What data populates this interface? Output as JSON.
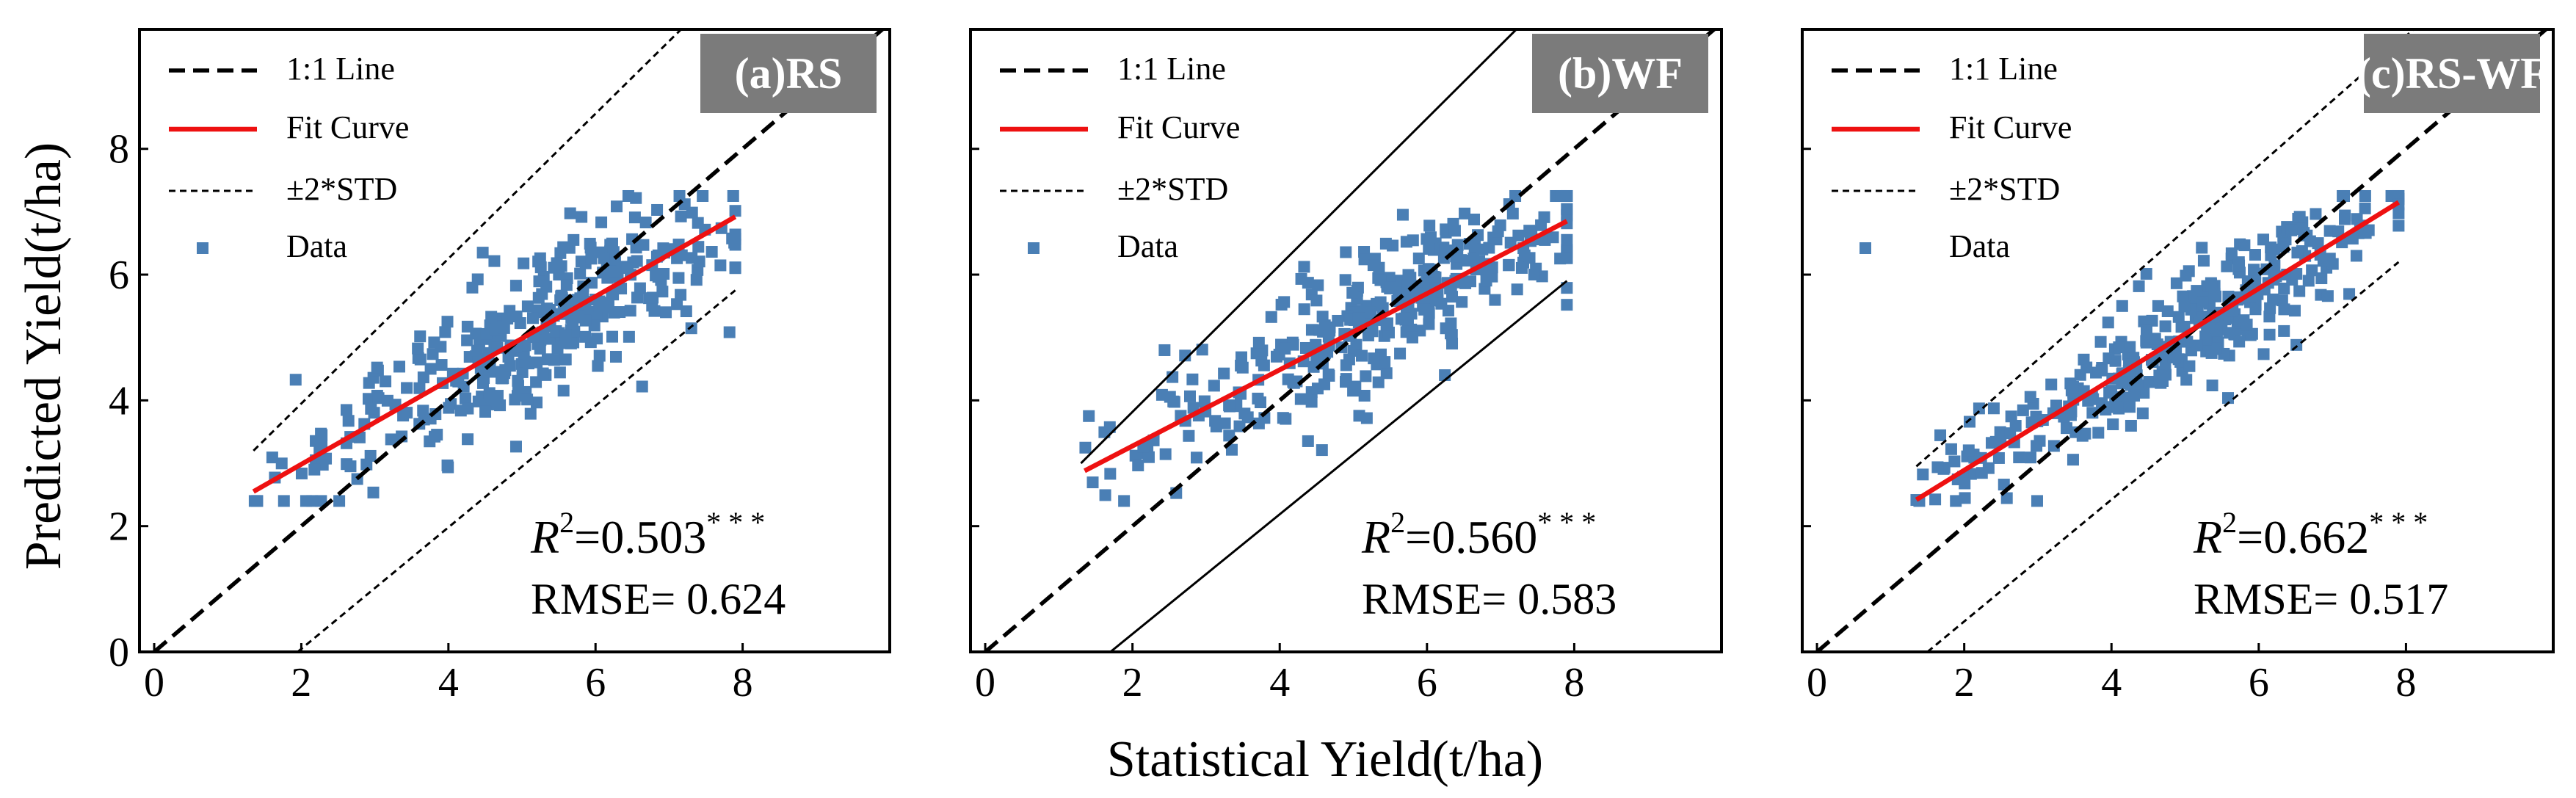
{
  "figure": {
    "ylabel": "Predicted Yield(t/ha)",
    "xlabel": "Statistical Yield(t/ha)"
  },
  "style": {
    "point_color": "#4a7fb5",
    "fit_color": "#ee1111",
    "label_bg": "#7b7b7b",
    "label_text": "#ffffff",
    "line_color": "#000000"
  },
  "chart_data": [
    {
      "type": "scatter",
      "id": "a",
      "title": "(a)RS",
      "xlabel": "Statistical Yield(t/ha)",
      "ylabel": "Predicted Yield(t/ha)",
      "xlim": [
        -0.2,
        10
      ],
      "ylim": [
        0,
        9.9
      ],
      "xticks": [
        0,
        2,
        4,
        6,
        8
      ],
      "yticks": [
        0,
        2,
        4,
        6,
        8
      ],
      "legend": [
        "1:1 Line",
        "Fit Curve",
        "±2*STD",
        "Data"
      ],
      "legend_position": "top-left",
      "one_to_one": [
        [
          0,
          0
        ],
        [
          10,
          10
        ]
      ],
      "fit_line": [
        [
          1.35,
          2.55
        ],
        [
          7.9,
          6.92
        ]
      ],
      "std_upper": [
        [
          1.35,
          3.2
        ],
        [
          7.25,
          10.0
        ]
      ],
      "std_lower": [
        [
          1.95,
          0.0
        ],
        [
          7.9,
          5.75
        ]
      ],
      "std_style": "dashed",
      "r2_label": "R",
      "r2_sup": "2",
      "r2_value": "0.503",
      "r2_stars": "* * *",
      "rmse_label": "RMSE=",
      "rmse_value": "0.624",
      "data": {
        "seed": 17,
        "n": 350,
        "slope": 0.62,
        "intercept": 1.82,
        "spread": 0.62,
        "xmin": 1.35,
        "xmax": 7.9,
        "center": 5.3
      }
    },
    {
      "type": "scatter",
      "id": "b",
      "title": "(b)WF",
      "xlabel": "Statistical Yield(t/ha)",
      "ylabel": "Predicted Yield(t/ha)",
      "xlim": [
        -0.2,
        10
      ],
      "ylim": [
        0,
        9.9
      ],
      "xticks": [
        0,
        2,
        4,
        6,
        8
      ],
      "yticks": [
        0,
        2,
        4,
        6,
        8
      ],
      "legend": [
        "1:1 Line",
        "Fit Curve",
        "±2*STD",
        "Data"
      ],
      "legend_position": "top-left",
      "one_to_one": [
        [
          0,
          0
        ],
        [
          10,
          10
        ]
      ],
      "fit_line": [
        [
          1.35,
          2.88
        ],
        [
          7.9,
          6.85
        ]
      ],
      "std_upper": [
        [
          1.3,
          3.0
        ],
        [
          7.3,
          10.0
        ]
      ],
      "std_lower": [
        [
          1.7,
          0.0
        ],
        [
          7.9,
          5.9
        ]
      ],
      "std_style": "solid",
      "r2_label": "R",
      "r2_sup": "2",
      "r2_value": "0.560",
      "r2_stars": "* * *",
      "rmse_label": "RMSE=",
      "rmse_value": "0.583",
      "data": {
        "seed": 29,
        "n": 350,
        "slope": 0.61,
        "intercept": 2.1,
        "spread": 0.56,
        "xmin": 1.35,
        "xmax": 7.9,
        "center": 5.5
      }
    },
    {
      "type": "scatter",
      "id": "c",
      "title": "(c)RS-WF",
      "xlabel": "Statistical Yield(t/ha)",
      "ylabel": "Predicted Yield(t/ha)",
      "xlim": [
        -0.2,
        10
      ],
      "ylim": [
        0,
        9.9
      ],
      "xticks": [
        0,
        2,
        4,
        6,
        8
      ],
      "yticks": [
        0,
        2,
        4,
        6,
        8
      ],
      "legend": [
        "1:1 Line",
        "Fit Curve",
        "±2*STD",
        "Data"
      ],
      "legend_position": "top-left",
      "one_to_one": [
        [
          0,
          0
        ],
        [
          10,
          10
        ]
      ],
      "fit_line": [
        [
          1.35,
          2.42
        ],
        [
          7.9,
          7.15
        ]
      ],
      "std_upper": [
        [
          1.35,
          2.95
        ],
        [
          8.2,
          10.0
        ]
      ],
      "std_lower": [
        [
          1.5,
          0.0
        ],
        [
          7.9,
          6.2
        ]
      ],
      "std_style": "dashed",
      "r2_label": "R",
      "r2_sup": "2",
      "r2_value": "0.662",
      "r2_stars": "* * *",
      "rmse_label": "RMSE=",
      "rmse_value": "0.517",
      "data": {
        "seed": 41,
        "n": 350,
        "slope": 0.72,
        "intercept": 1.45,
        "spread": 0.5,
        "xmin": 1.35,
        "xmax": 7.9,
        "center": 5.2
      }
    }
  ]
}
